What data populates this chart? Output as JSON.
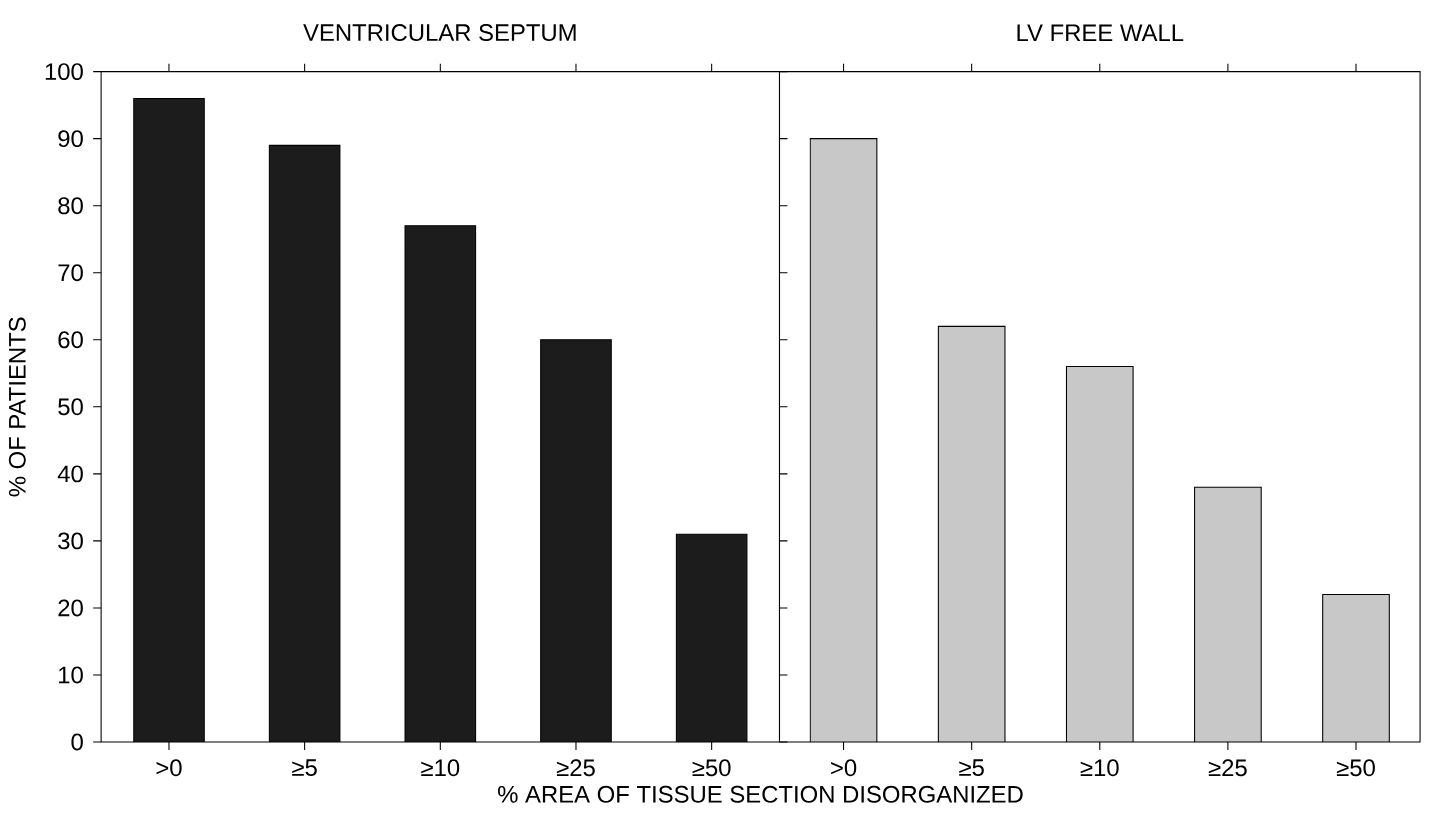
{
  "chart_data": [
    {
      "type": "bar",
      "title": "VENTRICULAR SEPTUM",
      "xlabel": "% AREA OF TISSUE SECTION DISORGANIZED",
      "ylabel": "% OF PATIENTS",
      "categories": [
        ">0",
        "≥5",
        "≥10",
        "≥25",
        "≥50"
      ],
      "values": [
        96,
        89,
        77,
        60,
        31
      ],
      "color": "#1c1c1c",
      "ylim": [
        0,
        100
      ],
      "yticks": [
        0,
        10,
        20,
        30,
        40,
        50,
        60,
        70,
        80,
        90,
        100
      ]
    },
    {
      "type": "bar",
      "title": "LV FREE WALL",
      "categories": [
        ">0",
        "≥5",
        "≥10",
        "≥25",
        "≥50"
      ],
      "values": [
        90,
        62,
        56,
        38,
        22
      ],
      "color": "#c8c8c8",
      "ylim": [
        0,
        100
      ],
      "yticks": [
        0,
        10,
        20,
        30,
        40,
        50,
        60,
        70,
        80,
        90,
        100
      ],
      "tick_labels": "x"
    }
  ]
}
